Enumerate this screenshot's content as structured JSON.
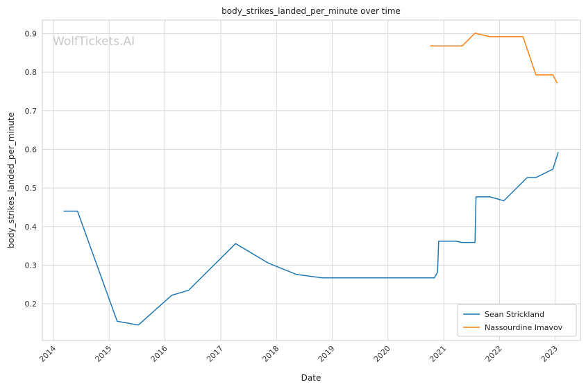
{
  "chart_data": {
    "type": "line",
    "title": "body_strikes_landed_per_minute over time",
    "xlabel": "Date",
    "ylabel": "body_strikes_landed_per_minute",
    "watermark": "WolfTickets.AI",
    "x_ticks": [
      "2014",
      "2015",
      "2016",
      "2017",
      "2018",
      "2019",
      "2020",
      "2021",
      "2022",
      "2023"
    ],
    "y_ticks": [
      "0.2",
      "0.3",
      "0.4",
      "0.5",
      "0.6",
      "0.7",
      "0.8",
      "0.9"
    ],
    "xlim": [
      "2013-10-20",
      "2023-06-15"
    ],
    "ylim": [
      0.105,
      0.935
    ],
    "grid": true,
    "legend_position": "lower-right",
    "series": [
      {
        "name": "Sean Strickland",
        "color": "#1f77b4",
        "points": [
          [
            "2014-03-08",
            0.44
          ],
          [
            "2014-06-07",
            0.44
          ],
          [
            "2015-02-22",
            0.155
          ],
          [
            "2015-07-11",
            0.145
          ],
          [
            "2016-02-14",
            0.222
          ],
          [
            "2016-06-04",
            0.235
          ],
          [
            "2017-04-08",
            0.356
          ],
          [
            "2017-11-11",
            0.305
          ],
          [
            "2018-05-12",
            0.276
          ],
          [
            "2018-10-27",
            0.267
          ],
          [
            "2020-10-31",
            0.267
          ],
          [
            "2020-11-21",
            0.282
          ],
          [
            "2020-11-28",
            0.362
          ],
          [
            "2021-03-20",
            0.362
          ],
          [
            "2021-05-01",
            0.359
          ],
          [
            "2021-07-24",
            0.359
          ],
          [
            "2021-07-31",
            0.477
          ],
          [
            "2021-10-30",
            0.477
          ],
          [
            "2022-01-29",
            0.467
          ],
          [
            "2022-07-01",
            0.527
          ],
          [
            "2022-08-27",
            0.527
          ],
          [
            "2022-12-17",
            0.549
          ],
          [
            "2023-01-21",
            0.593
          ]
        ]
      },
      {
        "name": "Nassourdine Imavov",
        "color": "#ff7f0e",
        "points": [
          [
            "2020-10-03",
            0.868
          ],
          [
            "2021-05-01",
            0.868
          ],
          [
            "2021-07-24",
            0.901
          ],
          [
            "2021-10-30",
            0.892
          ],
          [
            "2022-06-04",
            0.892
          ],
          [
            "2022-08-27",
            0.793
          ],
          [
            "2022-12-17",
            0.793
          ],
          [
            "2023-01-14",
            0.771
          ]
        ]
      }
    ]
  }
}
